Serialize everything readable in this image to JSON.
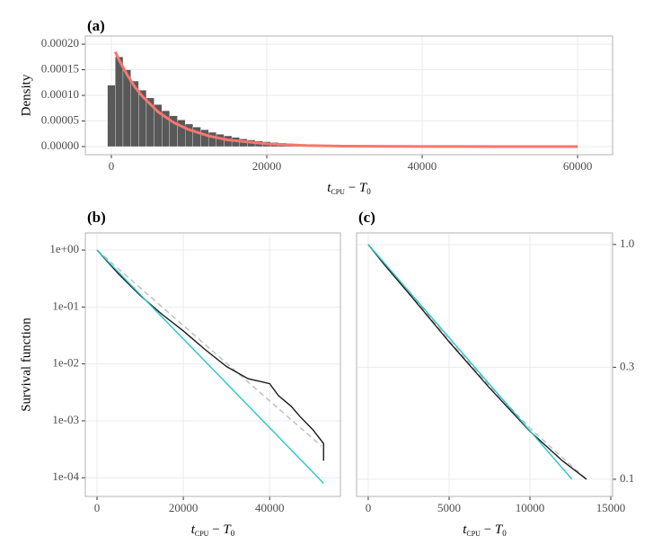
{
  "chart_data": [
    {
      "type": "histogram",
      "title": "(a)",
      "ylabel": "Density",
      "xlabel": [
        "t",
        "CPU",
        " − ",
        "T",
        "0"
      ],
      "bins": [
        -500,
        500,
        1500,
        2500,
        3500,
        4500,
        5500,
        6500,
        7500,
        8500,
        9500,
        10500,
        11500,
        12500,
        13500,
        14500,
        15500,
        16500,
        17500,
        18500,
        19500,
        20500,
        21500,
        22500,
        23500,
        24500,
        25500
      ],
      "values": [
        0.00012,
        0.000175,
        0.00015,
        0.000128,
        0.00011,
        9.5e-05,
        8.2e-05,
        7e-05,
        6e-05,
        5.2e-05,
        4.4e-05,
        3.8e-05,
        3.3e-05,
        2.8e-05,
        2.4e-05,
        2.1e-05,
        1.8e-05,
        1.5e-05,
        1.3e-05,
        1.1e-05,
        9.5e-06,
        8e-06,
        7e-06,
        6e-06,
        5e-06,
        4.3e-06
      ],
      "color": "#595959",
      "curve": {
        "color": "#f8766d",
        "x": [
          500,
          1000,
          2000,
          3000,
          4000,
          6000,
          8000,
          10000,
          12500,
          15000,
          20000,
          25000,
          30000,
          40000,
          50000,
          60000
        ],
        "values": [
          0.000185,
          0.000169,
          0.000141,
          0.000117,
          9.8e-05,
          6.8e-05,
          4.7e-05,
          3.3e-05,
          2.1e-05,
          1.3e-05,
          5.5e-06,
          2.2e-06,
          9e-07,
          2e-07,
          3e-08,
          4e-09
        ]
      },
      "xlim": [
        -3350,
        64500
      ],
      "xticks": [
        0,
        20000,
        40000,
        60000
      ],
      "ylim": [
        -1.58e-05,
        0.000216
      ],
      "yticks": [
        {
          "value": 0,
          "label": "0.00000"
        },
        {
          "value": 5e-05,
          "label": "0.00005"
        },
        {
          "value": 0.0001,
          "label": "0.00010"
        },
        {
          "value": 0.00015,
          "label": "0.00015"
        },
        {
          "value": 0.0002,
          "label": "0.00020"
        }
      ],
      "grid": true
    },
    {
      "type": "line",
      "title": "(b)",
      "ylabel": "Survival function",
      "xlabel": [
        "t",
        "CPU",
        " − ",
        "T",
        "0"
      ],
      "series": [
        {
          "color": "#bdbdbd",
          "style": "dashed",
          "x": [
            0,
            52000
          ],
          "values": [
            1,
            0.00036
          ]
        },
        {
          "color": "#1a1a1a",
          "style": "solid",
          "x": [
            0,
            5000,
            10000,
            15000,
            20000,
            25000,
            30000,
            35000,
            40000,
            42000,
            45000,
            47000,
            50000,
            52500,
            52500
          ],
          "values": [
            1,
            0.38,
            0.16,
            0.075,
            0.038,
            0.018,
            0.009,
            0.0055,
            0.0045,
            0.0028,
            0.0018,
            0.0012,
            0.0007,
            0.0004,
            0.0002
          ]
        },
        {
          "color": "#26c6c9",
          "style": "solid",
          "x": [
            0,
            52500
          ],
          "values": [
            1,
            8e-05
          ]
        }
      ],
      "xlim": [
        -2700,
        56400
      ],
      "xticks": [
        0,
        20000,
        40000
      ],
      "yscale": "log",
      "ylim": [
        4.7e-05,
        2
      ],
      "yticks": [
        {
          "value": 1,
          "label": "1e+00"
        },
        {
          "value": 0.1,
          "label": "1e-01"
        },
        {
          "value": 0.01,
          "label": "1e-02"
        },
        {
          "value": 0.001,
          "label": "1e-03"
        },
        {
          "value": 0.0001,
          "label": "1e-04"
        }
      ],
      "grid": true
    },
    {
      "type": "line",
      "title": "(c)",
      "xlabel": [
        "t",
        "CPU",
        " − ",
        "T",
        "0"
      ],
      "series": [
        {
          "color": "#bdbdbd",
          "style": "dashed",
          "x": [
            0,
            2500,
            5000,
            7500,
            10000,
            13500
          ],
          "values": [
            1,
            0.63,
            0.39,
            0.25,
            0.165,
            0.1
          ]
        },
        {
          "color": "#1a1a1a",
          "style": "solid",
          "x": [
            0,
            1000,
            2500,
            5000,
            7500,
            10000,
            12000,
            13500
          ],
          "values": [
            1,
            0.82,
            0.62,
            0.385,
            0.245,
            0.16,
            0.12,
            0.1
          ]
        },
        {
          "color": "#26c6c9",
          "style": "solid",
          "x": [
            0,
            12600
          ],
          "values": [
            1,
            0.1
          ]
        }
      ],
      "xlim": [
        -720,
        15110
      ],
      "xticks": [
        0,
        5000,
        10000,
        15000
      ],
      "yscale": "log",
      "ylim": [
        0.0845,
        1.12
      ],
      "yaxis": "right",
      "yticks": [
        {
          "value": 1,
          "label": "1.0"
        },
        0.3,
        0.1
      ],
      "grid": true
    }
  ]
}
